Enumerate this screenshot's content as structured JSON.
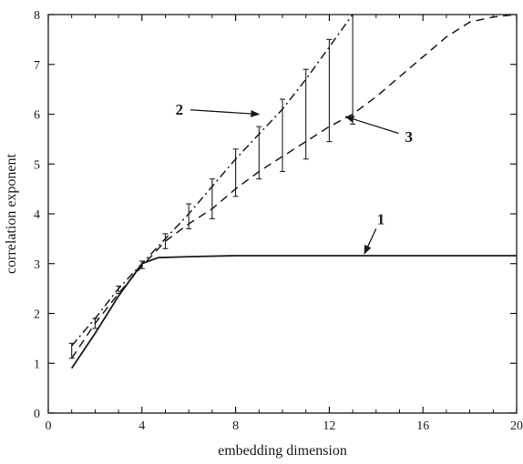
{
  "chart_data": {
    "type": "line",
    "title": "",
    "xlabel": "embedding dimension",
    "ylabel": "correlation exponent",
    "xlim": [
      0,
      20
    ],
    "ylim": [
      0,
      8
    ],
    "x_ticks": [
      0,
      4,
      8,
      12,
      16,
      20
    ],
    "y_ticks": [
      0,
      1,
      2,
      3,
      4,
      5,
      6,
      7,
      8
    ],
    "grid": false,
    "series": [
      {
        "name": "1",
        "style": "solid",
        "x": [
          1,
          2,
          3,
          4,
          4.7,
          6,
          8,
          10,
          12,
          14,
          16,
          18,
          20
        ],
        "y": [
          0.9,
          1.6,
          2.35,
          3.0,
          3.12,
          3.14,
          3.16,
          3.16,
          3.16,
          3.16,
          3.16,
          3.16,
          3.16
        ]
      },
      {
        "name": "2",
        "style": "dash-dot",
        "x": [
          1,
          2,
          3,
          4,
          5,
          6,
          7,
          8,
          9,
          10,
          11,
          12,
          13
        ],
        "y": [
          1.35,
          1.9,
          2.5,
          3.0,
          3.5,
          4.0,
          4.55,
          5.1,
          5.6,
          6.1,
          6.7,
          7.35,
          8.0
        ]
      },
      {
        "name": "3",
        "style": "dashed",
        "x": [
          1,
          2,
          3,
          4,
          5,
          6,
          7,
          8,
          9,
          10,
          11,
          12,
          13,
          14,
          15,
          16,
          17,
          18,
          19,
          20
        ],
        "y": [
          1.1,
          1.8,
          2.4,
          2.95,
          3.45,
          3.8,
          4.1,
          4.5,
          4.85,
          5.15,
          5.45,
          5.75,
          6.0,
          6.35,
          6.75,
          7.15,
          7.55,
          7.85,
          7.95,
          8.0
        ]
      }
    ],
    "error_bars": [
      {
        "x": 1,
        "y_low": 1.1,
        "y_high": 1.4
      },
      {
        "x": 2,
        "y_low": 1.7,
        "y_high": 1.9
      },
      {
        "x": 3,
        "y_low": 2.4,
        "y_high": 2.55
      },
      {
        "x": 4,
        "y_low": 2.9,
        "y_high": 3.05
      },
      {
        "x": 5,
        "y_low": 3.3,
        "y_high": 3.6
      },
      {
        "x": 6,
        "y_low": 3.7,
        "y_high": 4.2
      },
      {
        "x": 7,
        "y_low": 3.9,
        "y_high": 4.7
      },
      {
        "x": 8,
        "y_low": 4.35,
        "y_high": 5.3
      },
      {
        "x": 9,
        "y_low": 4.7,
        "y_high": 5.75
      },
      {
        "x": 10,
        "y_low": 4.85,
        "y_high": 6.3
      },
      {
        "x": 11,
        "y_low": 5.1,
        "y_high": 6.9
      },
      {
        "x": 12,
        "y_low": 5.45,
        "y_high": 7.5
      },
      {
        "x": 13,
        "y_low": 5.8,
        "y_high": 8.0
      }
    ],
    "annotations": [
      {
        "text": "1",
        "label_at": [
          14.2,
          3.9
        ],
        "arrow_to": [
          13.5,
          3.2
        ]
      },
      {
        "text": "2",
        "label_at": [
          5.6,
          6.1
        ],
        "arrow_to": [
          9.0,
          6.0
        ]
      },
      {
        "text": "3",
        "label_at": [
          15.4,
          5.55
        ],
        "arrow_to": [
          12.7,
          5.95
        ]
      }
    ]
  }
}
